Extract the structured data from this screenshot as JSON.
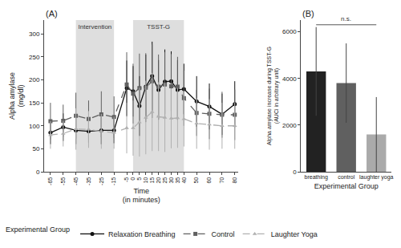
{
  "chart_data": [
    {
      "type": "line",
      "title": "(A)",
      "xlabel": "Time\n(in minutes)",
      "ylabel": "Alpha amylase\n(mg/dl)",
      "x": [
        -65,
        -55,
        -45,
        -35,
        -25,
        -15,
        -5,
        0,
        5,
        10,
        15,
        20,
        25,
        30,
        35,
        40,
        50,
        60,
        70,
        80
      ],
      "xlim": [
        -70,
        83
      ],
      "xticks": [
        -65,
        -55,
        -45,
        -35,
        -25,
        -15,
        -5,
        0,
        5,
        10,
        15,
        20,
        25,
        30,
        35,
        40,
        50,
        60,
        70,
        80
      ],
      "ylim": [
        0,
        330
      ],
      "yticks": [
        0,
        50,
        100,
        150,
        200,
        250,
        300
      ],
      "grid": false,
      "legend": "bottom",
      "legend_title": "Experimental Group",
      "shaded_regions": [
        {
          "label": "Intervention",
          "x": [
            -45,
            -15
          ],
          "color": "#dedede"
        },
        {
          "label": "TSST-G",
          "x": [
            0,
            40
          ],
          "color": "#dedede"
        }
      ],
      "series": [
        {
          "name": "Relaxation Breathing",
          "color": "#111111",
          "marker": "circle",
          "line_style": "solid",
          "values": [
            85,
            97,
            90,
            88,
            90,
            90,
            182,
            175,
            143,
            185,
            208,
            178,
            196,
            197,
            178,
            180,
            153,
            142,
            125,
            147
          ],
          "sd": [
            25,
            30,
            30,
            25,
            30,
            28,
            60,
            55,
            65,
            70,
            75,
            65,
            70,
            65,
            65,
            55,
            55,
            50,
            45,
            50
          ]
        },
        {
          "name": "Control",
          "color": "#606060",
          "marker": "square",
          "line_style": "dash",
          "values": [
            110,
            111,
            122,
            115,
            125,
            119,
            190,
            170,
            182,
            183,
            197,
            185,
            190,
            186,
            185,
            160,
            128,
            126,
            124,
            124
          ],
          "sd": [
            40,
            35,
            50,
            40,
            50,
            45,
            70,
            65,
            75,
            75,
            80,
            70,
            70,
            70,
            65,
            60,
            50,
            55,
            50,
            55
          ]
        },
        {
          "name": "Laughter Yoga",
          "color": "#b0b0b0",
          "marker": "triangle-up",
          "line_style": "dash",
          "values": [
            80,
            83,
            93,
            92,
            88,
            85,
            95,
            95,
            108,
            118,
            130,
            120,
            118,
            116,
            117,
            115,
            105,
            103,
            100,
            100
          ],
          "sd": [
            30,
            28,
            45,
            40,
            38,
            35,
            55,
            60,
            75,
            80,
            85,
            75,
            75,
            65,
            65,
            60,
            55,
            55,
            50,
            50
          ]
        }
      ]
    },
    {
      "type": "bar",
      "title": "(B)",
      "xlabel": "Experimental Group",
      "ylabel": "Alpha amylase increase during TSST-G\n(AUCi in arbitrary unit)",
      "categories": [
        "breathing",
        "control",
        "laughter yoga"
      ],
      "values": [
        4300,
        3800,
        1600
      ],
      "sd": [
        1900,
        1700,
        1600
      ],
      "colors": [
        "#222222",
        "#606060",
        "#aaaaaa"
      ],
      "ylim": [
        0,
        6500
      ],
      "yticks": [
        0,
        2000,
        4000,
        6000
      ],
      "grid": false,
      "annotations": [
        {
          "text": "n.s.",
          "from": "breathing",
          "to": "laughter yoga",
          "y": 6300
        }
      ]
    }
  ]
}
